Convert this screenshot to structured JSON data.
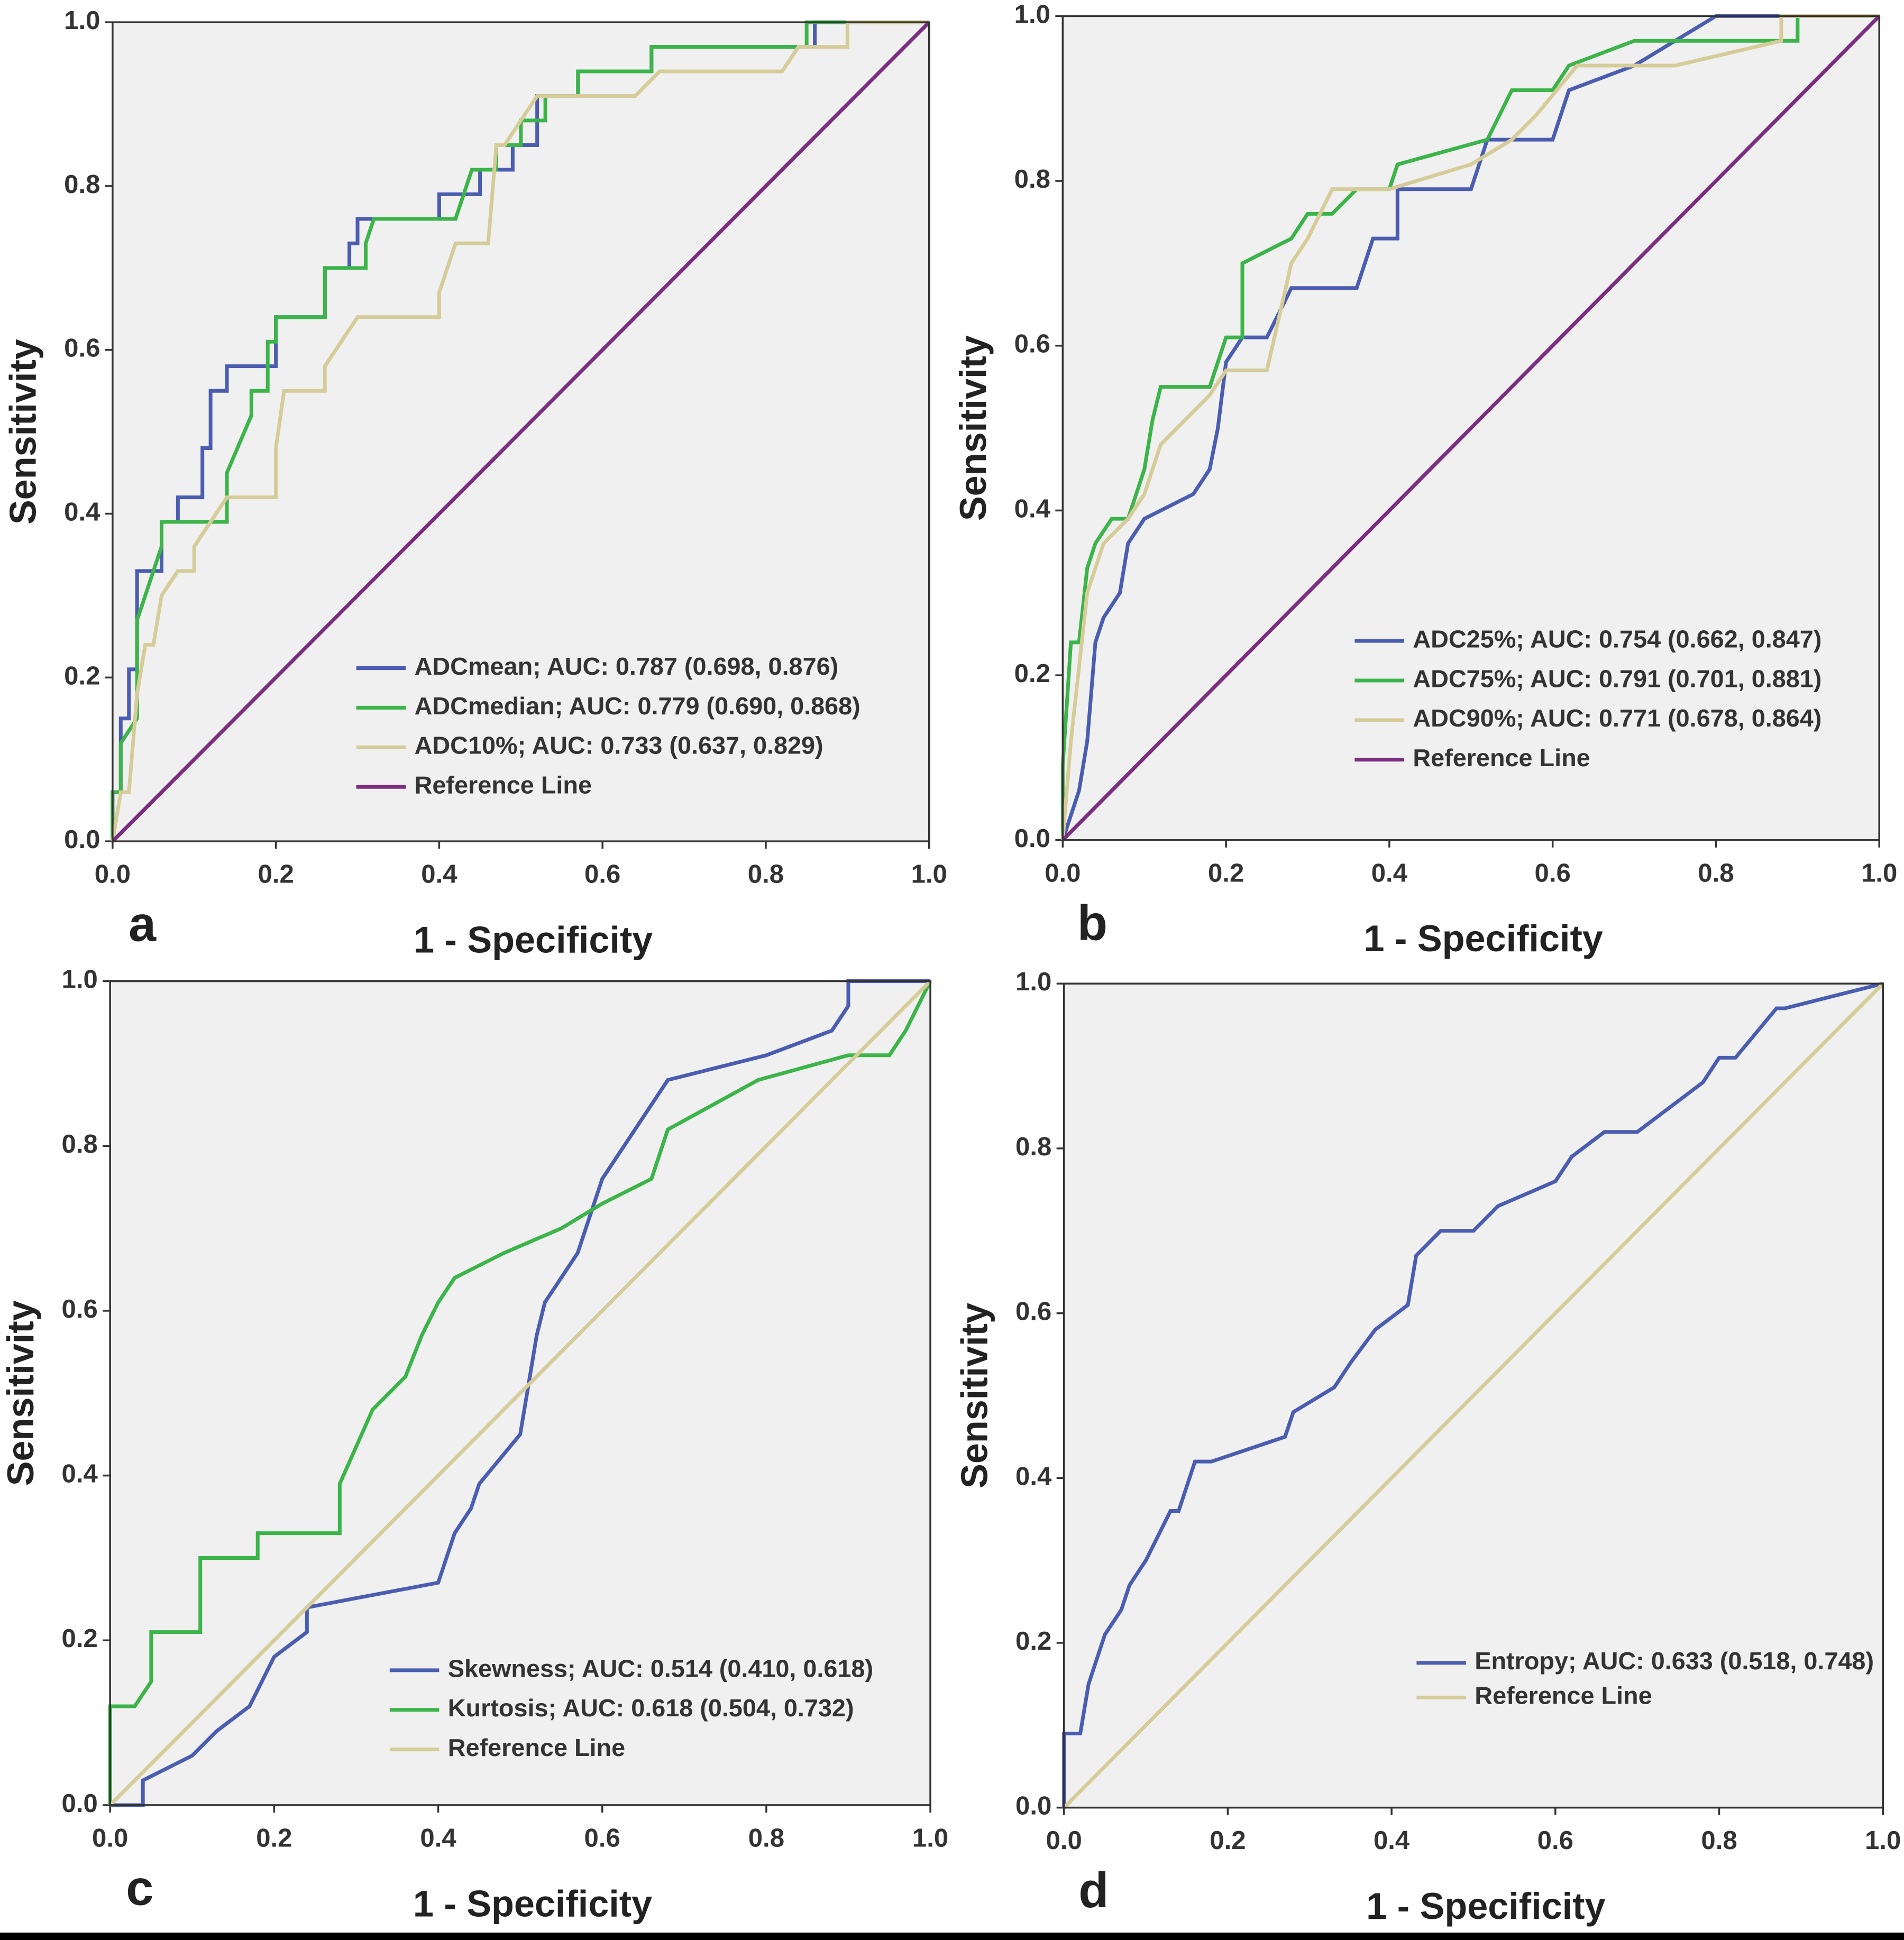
{
  "chart_data": [
    {
      "type": "line",
      "panel_label": "a",
      "xlabel": "1 - Specificity",
      "ylabel": "Sensitivity",
      "xlim": [
        0,
        1
      ],
      "ylim": [
        0,
        1
      ],
      "xticks": [
        {
          "value": 0,
          "label": "0.0"
        },
        0.2,
        0.4,
        0.6,
        0.8,
        {
          "value": 1,
          "label": "1.0"
        }
      ],
      "yticks": [
        {
          "value": 0,
          "label": "0.0"
        },
        0.2,
        0.4,
        0.6,
        0.8,
        {
          "value": 1,
          "label": "1.0"
        }
      ],
      "legend": "lower right",
      "series": [
        {
          "name": "ADCmean; AUC: 0.787 (0.698, 0.876)",
          "color": "#4a5db0",
          "x": [
            0,
            0,
            0.01,
            0.01,
            0.02,
            0.02,
            0.03,
            0.03,
            0.06,
            0.06,
            0.08,
            0.08,
            0.11,
            0.11,
            0.12,
            0.12,
            0.14,
            0.14,
            0.2,
            0.2,
            0.26,
            0.26,
            0.29,
            0.29,
            0.3,
            0.3,
            0.4,
            0.4,
            0.45,
            0.45,
            0.49,
            0.49,
            0.52,
            0.52,
            0.57,
            0.57,
            0.66,
            0.66,
            0.86,
            0.86,
            1
          ],
          "values": [
            0,
            0.06,
            0.06,
            0.15,
            0.15,
            0.21,
            0.21,
            0.33,
            0.33,
            0.39,
            0.39,
            0.42,
            0.42,
            0.48,
            0.48,
            0.55,
            0.55,
            0.58,
            0.58,
            0.64,
            0.64,
            0.7,
            0.7,
            0.73,
            0.73,
            0.76,
            0.76,
            0.79,
            0.79,
            0.82,
            0.82,
            0.85,
            0.85,
            0.91,
            0.91,
            0.94,
            0.94,
            0.97,
            0.97,
            1,
            1
          ]
        },
        {
          "name": "ADCmedian; AUC: 0.779 (0.690, 0.868)",
          "color": "#3cb44a",
          "x": [
            0,
            0,
            0.01,
            0.01,
            0.03,
            0.03,
            0.06,
            0.06,
            0.14,
            0.14,
            0.17,
            0.17,
            0.19,
            0.19,
            0.2,
            0.2,
            0.26,
            0.26,
            0.31,
            0.31,
            0.32,
            0.42,
            0.44,
            0.47,
            0.47,
            0.5,
            0.5,
            0.53,
            0.53,
            0.57,
            0.57,
            0.66,
            0.66,
            0.85,
            0.85,
            1
          ],
          "values": [
            0,
            0.06,
            0.06,
            0.12,
            0.15,
            0.27,
            0.36,
            0.39,
            0.39,
            0.45,
            0.52,
            0.55,
            0.55,
            0.61,
            0.61,
            0.64,
            0.64,
            0.7,
            0.7,
            0.73,
            0.76,
            0.76,
            0.82,
            0.82,
            0.85,
            0.85,
            0.88,
            0.88,
            0.91,
            0.91,
            0.94,
            0.94,
            0.97,
            0.97,
            1,
            1
          ]
        },
        {
          "name": "ADC10%; AUC: 0.733 (0.637, 0.829)",
          "color": "#d6cc9a",
          "x": [
            0,
            0.01,
            0.02,
            0.03,
            0.04,
            0.05,
            0.06,
            0.08,
            0.1,
            0.1,
            0.14,
            0.2,
            0.2,
            0.21,
            0.26,
            0.26,
            0.28,
            0.3,
            0.4,
            0.4,
            0.42,
            0.46,
            0.47,
            0.48,
            0.52,
            0.57,
            0.64,
            0.67,
            0.82,
            0.84,
            0.9,
            0.9,
            1
          ],
          "values": [
            0,
            0.06,
            0.06,
            0.18,
            0.24,
            0.24,
            0.3,
            0.33,
            0.33,
            0.36,
            0.42,
            0.42,
            0.48,
            0.55,
            0.55,
            0.58,
            0.61,
            0.64,
            0.64,
            0.67,
            0.73,
            0.73,
            0.85,
            0.85,
            0.91,
            0.91,
            0.91,
            0.94,
            0.94,
            0.97,
            0.97,
            1,
            1
          ]
        },
        {
          "name": "Reference Line",
          "color": "#7b2d80",
          "x": [
            0,
            1
          ],
          "values": [
            0,
            1
          ]
        }
      ]
    },
    {
      "type": "line",
      "panel_label": "b",
      "xlabel": "1 - Specificity",
      "ylabel": "Sensitivity",
      "xlim": [
        0,
        1
      ],
      "ylim": [
        0,
        1
      ],
      "xticks": [
        {
          "value": 0,
          "label": "0.0"
        },
        0.2,
        0.4,
        0.6,
        0.8,
        {
          "value": 1,
          "label": "1.0"
        }
      ],
      "yticks": [
        {
          "value": 0,
          "label": "0.0"
        },
        0.2,
        0.4,
        0.6,
        0.8,
        {
          "value": 1,
          "label": "1.0"
        }
      ],
      "legend": "lower right",
      "series": [
        {
          "name": "ADC25%; AUC: 0.754 (0.662, 0.847)",
          "color": "#4a5db0",
          "x": [
            0,
            0.01,
            0.02,
            0.03,
            0.04,
            0.05,
            0.07,
            0.08,
            0.1,
            0.16,
            0.18,
            0.19,
            0.2,
            0.22,
            0.25,
            0.28,
            0.36,
            0.38,
            0.41,
            0.41,
            0.5,
            0.52,
            0.6,
            0.62,
            0.7,
            0.8,
            1
          ],
          "values": [
            0,
            0.03,
            0.06,
            0.12,
            0.24,
            0.27,
            0.3,
            0.36,
            0.39,
            0.42,
            0.45,
            0.5,
            0.58,
            0.61,
            0.61,
            0.67,
            0.67,
            0.73,
            0.73,
            0.79,
            0.79,
            0.85,
            0.85,
            0.91,
            0.94,
            1,
            1
          ]
        },
        {
          "name": "ADC75%; AUC: 0.791 (0.701, 0.881)",
          "color": "#3cb44a",
          "x": [
            0,
            0,
            0.01,
            0.02,
            0.03,
            0.04,
            0.06,
            0.08,
            0.1,
            0.11,
            0.12,
            0.18,
            0.2,
            0.22,
            0.22,
            0.28,
            0.3,
            0.33,
            0.36,
            0.4,
            0.41,
            0.52,
            0.55,
            0.6,
            0.62,
            0.7,
            0.8,
            0.9,
            0.9,
            1
          ],
          "values": [
            0,
            0.09,
            0.24,
            0.24,
            0.33,
            0.36,
            0.39,
            0.39,
            0.45,
            0.51,
            0.55,
            0.55,
            0.61,
            0.61,
            0.7,
            0.73,
            0.76,
            0.76,
            0.79,
            0.79,
            0.82,
            0.85,
            0.91,
            0.91,
            0.94,
            0.97,
            0.97,
            0.97,
            1,
            1
          ]
        },
        {
          "name": "ADC90%; AUC: 0.771 (0.678, 0.864)",
          "color": "#d6cc9a",
          "x": [
            0,
            0.01,
            0.02,
            0.03,
            0.05,
            0.08,
            0.1,
            0.12,
            0.18,
            0.2,
            0.25,
            0.28,
            0.3,
            0.33,
            0.4,
            0.5,
            0.55,
            0.58,
            0.63,
            0.75,
            0.88,
            0.88,
            1
          ],
          "values": [
            0,
            0.12,
            0.21,
            0.3,
            0.36,
            0.39,
            0.42,
            0.48,
            0.54,
            0.57,
            0.57,
            0.7,
            0.73,
            0.79,
            0.79,
            0.82,
            0.85,
            0.88,
            0.94,
            0.94,
            0.97,
            1,
            1
          ]
        },
        {
          "name": "Reference Line",
          "color": "#7b2d80",
          "x": [
            0,
            1
          ],
          "values": [
            0,
            1
          ]
        }
      ]
    },
    {
      "type": "line",
      "panel_label": "c",
      "xlabel": "1 - Specificity",
      "ylabel": "Sensitivity",
      "xlim": [
        0,
        1
      ],
      "ylim": [
        0,
        1
      ],
      "xticks": [
        {
          "value": 0,
          "label": "0.0"
        },
        0.2,
        0.4,
        0.6,
        0.8,
        {
          "value": 1,
          "label": "1.0"
        }
      ],
      "yticks": [
        {
          "value": 0,
          "label": "0.0"
        },
        0.2,
        0.4,
        0.6,
        0.8,
        {
          "value": 1,
          "label": "1.0"
        }
      ],
      "legend": "lower right",
      "series": [
        {
          "name": "Skewness; AUC: 0.514 (0.410, 0.618)",
          "color": "#4a5db0",
          "x": [
            0,
            0.04,
            0.04,
            0.1,
            0.13,
            0.17,
            0.2,
            0.24,
            0.24,
            0.4,
            0.42,
            0.44,
            0.45,
            0.5,
            0.52,
            0.53,
            0.57,
            0.6,
            0.64,
            0.68,
            0.8,
            0.88,
            0.9,
            0.9,
            1
          ],
          "values": [
            0,
            0,
            0.03,
            0.06,
            0.09,
            0.12,
            0.18,
            0.21,
            0.24,
            0.27,
            0.33,
            0.36,
            0.39,
            0.45,
            0.57,
            0.61,
            0.67,
            0.76,
            0.82,
            0.88,
            0.91,
            0.94,
            0.97,
            1,
            1
          ]
        },
        {
          "name": "Kurtosis; AUC: 0.618 (0.504, 0.732)",
          "color": "#3cb44a",
          "x": [
            0,
            0,
            0.03,
            0.05,
            0.05,
            0.11,
            0.11,
            0.18,
            0.18,
            0.28,
            0.28,
            0.32,
            0.36,
            0.38,
            0.4,
            0.42,
            0.48,
            0.55,
            0.6,
            0.66,
            0.68,
            0.79,
            0.9,
            0.95,
            0.97,
            1
          ],
          "values": [
            0,
            0.12,
            0.12,
            0.15,
            0.21,
            0.21,
            0.3,
            0.3,
            0.33,
            0.33,
            0.39,
            0.48,
            0.52,
            0.57,
            0.61,
            0.64,
            0.67,
            0.7,
            0.73,
            0.76,
            0.82,
            0.88,
            0.91,
            0.91,
            0.94,
            1
          ]
        },
        {
          "name": "Reference Line",
          "color": "#d6cc9a",
          "x": [
            0,
            1
          ],
          "values": [
            0,
            1
          ]
        }
      ]
    },
    {
      "type": "line",
      "panel_label": "d",
      "xlabel": "1 - Specificity",
      "ylabel": "Sensitivity",
      "xlim": [
        0,
        1
      ],
      "ylim": [
        0,
        1
      ],
      "xticks": [
        {
          "value": 0,
          "label": "0.0"
        },
        0.2,
        0.4,
        0.6,
        0.8,
        {
          "value": 1,
          "label": "1.0"
        }
      ],
      "yticks": [
        {
          "value": 0,
          "label": "0.0"
        },
        0.2,
        0.4,
        0.6,
        0.8,
        {
          "value": 1,
          "label": "1.0"
        }
      ],
      "legend": "lower right",
      "series": [
        {
          "name": "Entropy; AUC: 0.633 (0.518, 0.748)",
          "color": "#4a5db0",
          "x": [
            0,
            0,
            0.02,
            0.03,
            0.04,
            0.05,
            0.07,
            0.08,
            0.1,
            0.13,
            0.14,
            0.16,
            0.18,
            0.27,
            0.28,
            0.33,
            0.35,
            0.38,
            0.42,
            0.43,
            0.46,
            0.5,
            0.53,
            0.6,
            0.62,
            0.66,
            0.7,
            0.78,
            0.8,
            0.82,
            0.87,
            0.88,
            1
          ],
          "values": [
            0,
            0.09,
            0.09,
            0.15,
            0.18,
            0.21,
            0.24,
            0.27,
            0.3,
            0.36,
            0.36,
            0.42,
            0.42,
            0.45,
            0.48,
            0.51,
            0.54,
            0.58,
            0.61,
            0.67,
            0.7,
            0.7,
            0.73,
            0.76,
            0.79,
            0.82,
            0.82,
            0.88,
            0.91,
            0.91,
            0.97,
            0.97,
            1
          ]
        },
        {
          "name": "Reference Line",
          "color": "#d6cc9a",
          "x": [
            0,
            1
          ],
          "values": [
            0,
            1
          ]
        }
      ]
    }
  ]
}
